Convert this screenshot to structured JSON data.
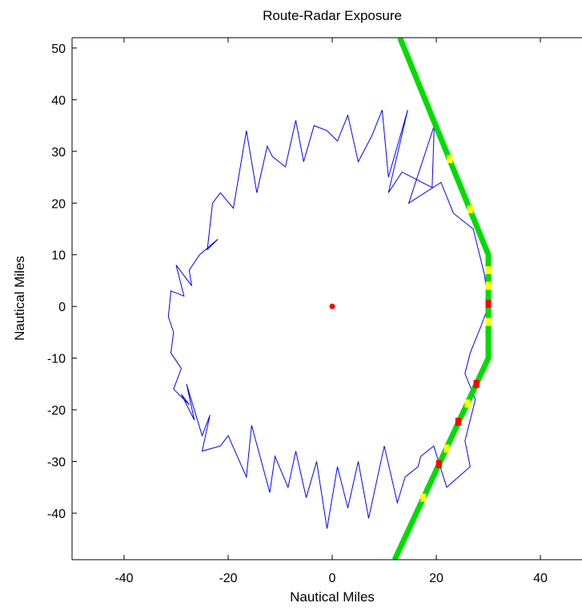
{
  "chart_data": {
    "type": "line",
    "title": "Route-Radar Exposure",
    "xlabel": "Nautical Miles",
    "ylabel": "Nautical Miles",
    "xlim": [
      -50,
      50
    ],
    "ylim": [
      -49,
      52
    ],
    "xticks": [
      -40,
      -20,
      0,
      20,
      40
    ],
    "yticks": [
      50,
      40,
      30,
      20,
      10,
      0,
      -10,
      -20,
      -30,
      -40
    ],
    "grid": false,
    "legend": "none",
    "radar_site": {
      "x": 0,
      "y": 0,
      "color": "#ff0000"
    },
    "series": [
      {
        "kind": "radar_coverage_boundary",
        "color": "#0000ff",
        "x": [
          30,
          29.3,
          27.1,
          23.3,
          20.9,
          14.7,
          19.6,
          19.2,
          13.4,
          10.8,
          14.5,
          10.8,
          9.6,
          7.6,
          5.0,
          3.0,
          1.0,
          -1.0,
          -3.5,
          -5.5,
          -7.0,
          -9.0,
          -11.5,
          -12.5,
          -14.5,
          -16.5,
          -19.0,
          -21.5,
          -23.0,
          -24.0,
          -22.0,
          -25.5,
          -27.5,
          -27.0,
          -30.0,
          -28.5,
          -31.0,
          -31.5,
          -30.5,
          -31.0,
          -29.0,
          -30.5,
          -27.5,
          -29.0,
          -26.5,
          -28.0,
          -25.0,
          -23.5,
          -25.0,
          -21.5,
          -20.0,
          -16.5,
          -15.5,
          -12.0,
          -11.0,
          -8.5,
          -7.0,
          -5.0,
          -3.0,
          -1.0,
          1.0,
          3.0,
          5.0,
          7.0,
          10.0,
          12.5,
          14.0,
          16.5,
          17.0,
          19.5,
          22.0,
          26.5,
          25.5,
          27.5,
          25.5,
          26.5,
          28.5,
          30
        ],
        "y": [
          0,
          6.0,
          15.0,
          18.0,
          24.0,
          20.0,
          35.0,
          23.0,
          26.0,
          22.0,
          38.0,
          25.0,
          38.0,
          33.0,
          28.0,
          37.0,
          32.0,
          34.0,
          35.0,
          28.0,
          36.0,
          27.0,
          29.0,
          31.0,
          22.0,
          34.0,
          19.0,
          22.0,
          20.0,
          11.0,
          13.0,
          10.0,
          7.0,
          4.0,
          8.0,
          2.0,
          3.0,
          -2.0,
          -5.0,
          -9.0,
          -12.0,
          -16.0,
          -19.0,
          -17.0,
          -22.0,
          -15.0,
          -25.0,
          -21.0,
          -28.0,
          -27.0,
          -25.0,
          -33.0,
          -23.0,
          -36.0,
          -29.0,
          -35.0,
          -28.0,
          -37.0,
          -30.0,
          -43.0,
          -31.0,
          -39.0,
          -30.0,
          -41.0,
          -27.0,
          -38.0,
          -33.0,
          -31.0,
          -29.0,
          -27.0,
          -35.0,
          -31.0,
          -26.0,
          -18.0,
          -13.0,
          -9.0,
          -4.0,
          0
        ]
      },
      {
        "kind": "route",
        "color": "#00dd00",
        "x": [
          13,
          30,
          30,
          12
        ],
        "y": [
          52,
          10,
          -10,
          -49
        ]
      }
    ],
    "exposure_points": [
      {
        "x": 22.6,
        "y": 28.5,
        "level": "low"
      },
      {
        "x": 26.5,
        "y": 18.8,
        "level": "low"
      },
      {
        "x": 30.0,
        "y": 7.0,
        "level": "low"
      },
      {
        "x": 30.0,
        "y": 4.0,
        "level": "low"
      },
      {
        "x": 30.0,
        "y": 0.5,
        "level": "high"
      },
      {
        "x": 30.0,
        "y": -3.0,
        "level": "low"
      },
      {
        "x": 27.7,
        "y": -15.0,
        "level": "high"
      },
      {
        "x": 26.0,
        "y": -18.8,
        "level": "low"
      },
      {
        "x": 24.2,
        "y": -22.3,
        "level": "high"
      },
      {
        "x": 22.0,
        "y": -27.5,
        "level": "low"
      },
      {
        "x": 20.5,
        "y": -30.5,
        "level": "high"
      },
      {
        "x": 17.5,
        "y": -37.0,
        "level": "low"
      }
    ],
    "exposure_colors": {
      "low": "#ffff00",
      "high": "#ff0000"
    }
  }
}
